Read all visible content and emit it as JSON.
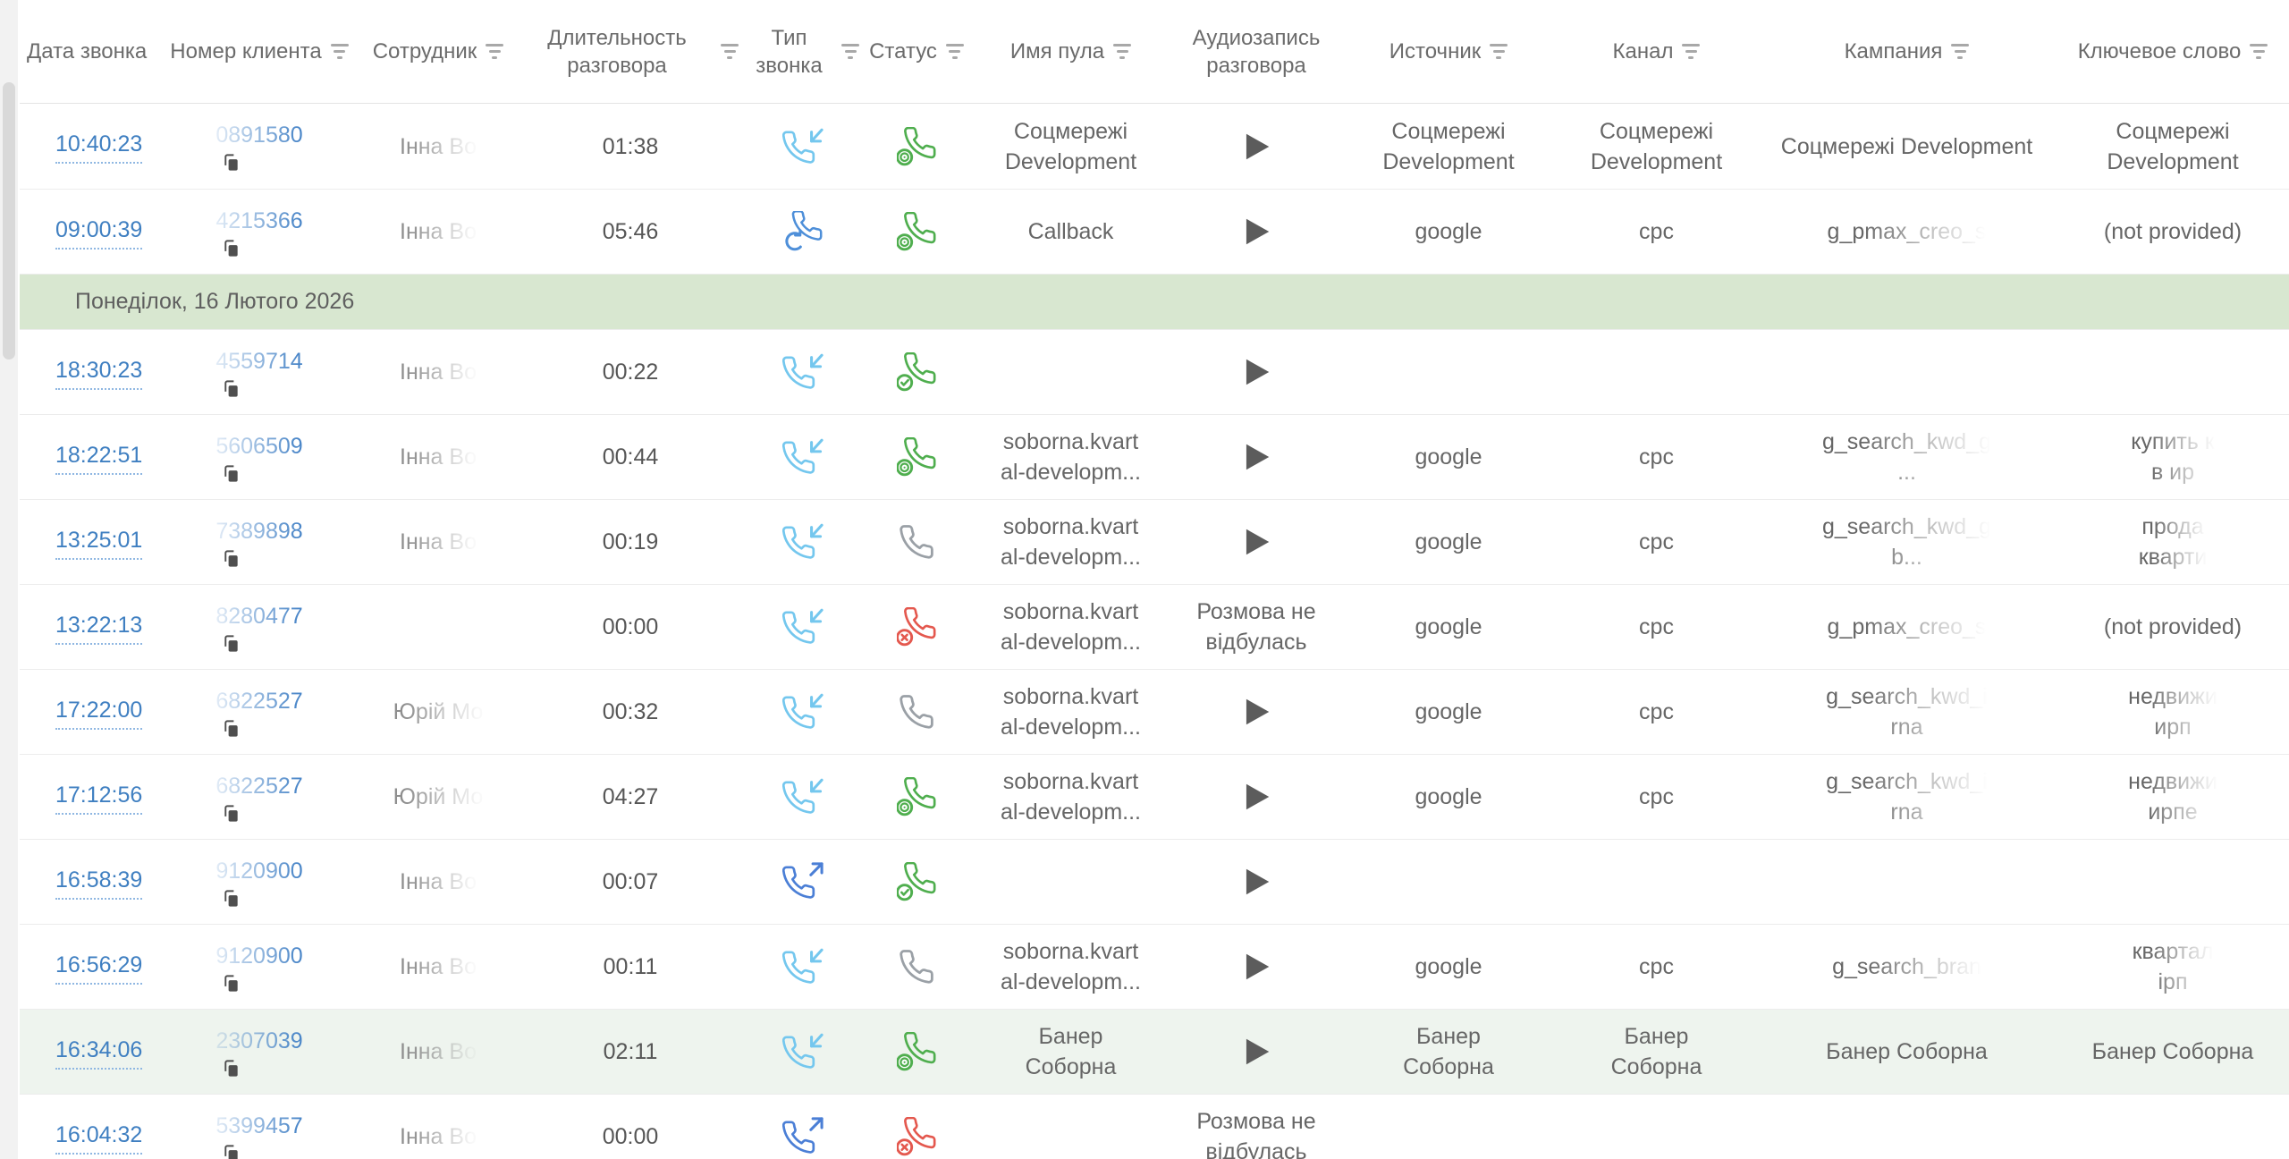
{
  "colors": {
    "incoming": "#74c7ee",
    "outgoing": "#4b7fd6",
    "callback": "#4e8fd9",
    "answered": "#4fae4e",
    "missed": "#e4584e",
    "no_answer": "#9aa0a6",
    "time_link": "#3f7fc1",
    "number": "#4a86c8",
    "separator_bg": "#d8e7d0",
    "highlight_bg": "#eef4ee",
    "play": "#5c5c5c"
  },
  "table": {
    "columns": [
      {
        "key": "date",
        "label": "Дата звонка",
        "filter": false
      },
      {
        "key": "client-number",
        "label": "Номер клиента",
        "filter": true
      },
      {
        "key": "employee",
        "label": "Сотрудник",
        "filter": true
      },
      {
        "key": "duration",
        "label": "Длительность разговора",
        "filter": true
      },
      {
        "key": "call-type",
        "label": "Тип звонка",
        "filter": true
      },
      {
        "key": "status",
        "label": "Статус",
        "filter": true
      },
      {
        "key": "pool-name",
        "label": "Имя пула",
        "filter": true
      },
      {
        "key": "audio",
        "label": "Аудиозапись разговора",
        "filter": false
      },
      {
        "key": "source",
        "label": "Источник",
        "filter": true
      },
      {
        "key": "channel",
        "label": "Канал",
        "filter": true
      },
      {
        "key": "campaign",
        "label": "Кампания",
        "filter": true
      },
      {
        "key": "keyword",
        "label": "Ключевое слово",
        "filter": true
      }
    ],
    "rows": [
      {
        "kind": "call",
        "time": "10:40:23",
        "number": "0891580",
        "employee": "Інна Во",
        "duration": "01:38",
        "call_type": "incoming",
        "status": "answered-target",
        "pool": "Соцмережі\nDevelopment",
        "audio": "play",
        "source": "Соцмережі\nDevelopment",
        "channel": "Соцмережі\nDevelopment",
        "campaign": "Соцмережі Development",
        "keyword": "Соцмережі\nDevelopment",
        "campaign_faded": false,
        "keyword_faded": false,
        "highlighted": false
      },
      {
        "kind": "call",
        "time": "09:00:39",
        "number": "4215366",
        "employee": "Інна Во",
        "duration": "05:46",
        "call_type": "callback",
        "status": "answered-target",
        "pool": "Callback",
        "audio": "play",
        "source": "google",
        "channel": "cpc",
        "campaign": "g_pmax_creo_s",
        "keyword": "(not provided)",
        "campaign_faded": true,
        "keyword_faded": false,
        "highlighted": false
      },
      {
        "kind": "separator",
        "label": "Понеділок, 16 Лютого 2026"
      },
      {
        "kind": "call",
        "time": "18:30:23",
        "number": "4559714",
        "employee": "Інна Во",
        "duration": "00:22",
        "call_type": "incoming",
        "status": "answered-check",
        "pool": "",
        "audio": "play",
        "source": "",
        "channel": "",
        "campaign": "",
        "keyword": "",
        "campaign_faded": false,
        "keyword_faded": false,
        "highlighted": false
      },
      {
        "kind": "call",
        "time": "18:22:51",
        "number": "5606509",
        "employee": "Інна Во",
        "duration": "00:44",
        "call_type": "incoming",
        "status": "answered-target",
        "pool": "soborna.kvart\nal-developm...",
        "audio": "play",
        "source": "google",
        "channel": "cpc",
        "campaign": "g_search_kwd_g\n...",
        "keyword": "купить к\nв ир",
        "campaign_faded": true,
        "keyword_faded": true,
        "highlighted": false
      },
      {
        "kind": "call",
        "time": "13:25:01",
        "number": "7389898",
        "employee": "Інна Во",
        "duration": "00:19",
        "call_type": "incoming",
        "status": "no-answer",
        "pool": "soborna.kvart\nal-developm...",
        "audio": "play",
        "source": "google",
        "channel": "cpc",
        "campaign": "g_search_kwd_g\nb...",
        "keyword": "прода\nкварти",
        "campaign_faded": true,
        "keyword_faded": true,
        "highlighted": false
      },
      {
        "kind": "call",
        "time": "13:22:13",
        "number": "8280477",
        "employee": "",
        "duration": "00:00",
        "call_type": "incoming",
        "status": "missed",
        "pool": "soborna.kvart\nal-developm...",
        "audio": "Розмова не\nвідбулась",
        "source": "google",
        "channel": "cpc",
        "campaign": "g_pmax_creo_s",
        "keyword": "(not provided)",
        "campaign_faded": true,
        "keyword_faded": false,
        "highlighted": false
      },
      {
        "kind": "call",
        "time": "17:22:00",
        "number": "6822527",
        "employee": "Юрій Мо",
        "duration": "00:32",
        "call_type": "incoming",
        "status": "no-answer",
        "pool": "soborna.kvart\nal-developm...",
        "audio": "play",
        "source": "google",
        "channel": "cpc",
        "campaign": "g_search_kwd_i\nrna",
        "keyword": "недвижи\nирп",
        "campaign_faded": true,
        "keyword_faded": true,
        "highlighted": false
      },
      {
        "kind": "call",
        "time": "17:12:56",
        "number": "6822527",
        "employee": "Юрій Мо",
        "duration": "04:27",
        "call_type": "incoming",
        "status": "answered-target",
        "pool": "soborna.kvart\nal-developm...",
        "audio": "play",
        "source": "google",
        "channel": "cpc",
        "campaign": "g_search_kwd_i\nrna",
        "keyword": "недвижи\nирпе",
        "campaign_faded": true,
        "keyword_faded": true,
        "highlighted": false
      },
      {
        "kind": "call",
        "time": "16:58:39",
        "number": "9120900",
        "employee": "Інна Во",
        "duration": "00:07",
        "call_type": "outgoing",
        "status": "answered-check",
        "pool": "",
        "audio": "play",
        "source": "",
        "channel": "",
        "campaign": "",
        "keyword": "",
        "campaign_faded": false,
        "keyword_faded": false,
        "highlighted": false
      },
      {
        "kind": "call",
        "time": "16:56:29",
        "number": "9120900",
        "employee": "Інна Во",
        "duration": "00:11",
        "call_type": "incoming",
        "status": "no-answer",
        "pool": "soborna.kvart\nal-developm...",
        "audio": "play",
        "source": "google",
        "channel": "cpc",
        "campaign": "g_search_bran",
        "keyword": "квартал\nірп",
        "campaign_faded": true,
        "keyword_faded": true,
        "highlighted": false
      },
      {
        "kind": "call",
        "time": "16:34:06",
        "number": "2307039",
        "employee": "Інна Во",
        "duration": "02:11",
        "call_type": "incoming",
        "status": "answered-target",
        "pool": "Банер\nСоборна",
        "audio": "play",
        "source": "Банер\nСоборна",
        "channel": "Банер\nСоборна",
        "campaign": "Банер Соборна",
        "keyword": "Банер Соборна",
        "campaign_faded": false,
        "keyword_faded": false,
        "highlighted": true
      },
      {
        "kind": "call",
        "time": "16:04:32",
        "number": "5399457",
        "employee": "Інна Во",
        "duration": "00:00",
        "call_type": "outgoing",
        "status": "missed",
        "pool": "",
        "audio": "Розмова не\nвідбулась",
        "source": "",
        "channel": "",
        "campaign": "",
        "keyword": "",
        "campaign_faded": false,
        "keyword_faded": false,
        "highlighted": false
      }
    ]
  }
}
